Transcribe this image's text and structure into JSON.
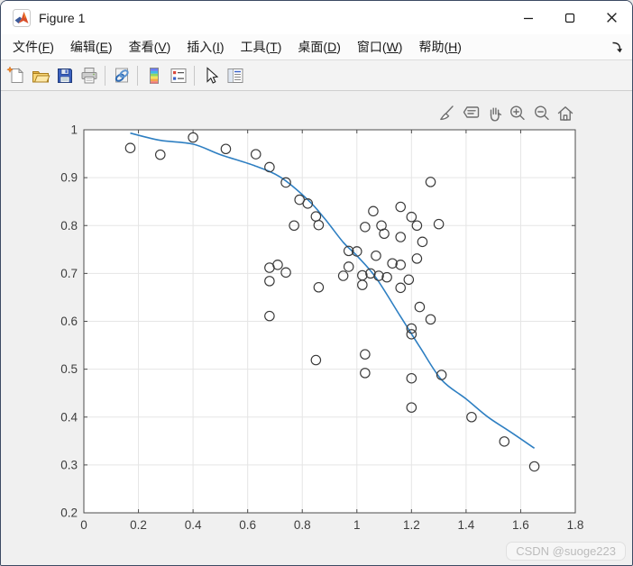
{
  "window": {
    "title": "Figure 1",
    "control_icons": [
      "minimize-icon",
      "maximize-icon",
      "close-icon"
    ]
  },
  "menu_bar": {
    "items": [
      {
        "key": "file",
        "text": "文件",
        "mnemonic": "F"
      },
      {
        "key": "edit",
        "text": "编辑",
        "mnemonic": "E"
      },
      {
        "key": "view",
        "text": "查看",
        "mnemonic": "V"
      },
      {
        "key": "insert",
        "text": "插入",
        "mnemonic": "I"
      },
      {
        "key": "tools",
        "text": "工具",
        "mnemonic": "T"
      },
      {
        "key": "desktop",
        "text": "桌面",
        "mnemonic": "D"
      },
      {
        "key": "window",
        "text": "窗口",
        "mnemonic": "W"
      },
      {
        "key": "help",
        "text": "帮助",
        "mnemonic": "H"
      }
    ],
    "overflow_icon": "dock-figure-arrow-icon"
  },
  "toolbar": {
    "button_icons": [
      "new-figure-icon",
      "open-file-icon",
      "save-figure-icon",
      "print-figure-icon",
      "link-plot-icon",
      "insert-colorbar-icon",
      "insert-legend-icon",
      "edit-plot-arrow-icon",
      "property-inspector-icon"
    ]
  },
  "axes_toolbar": {
    "button_icons": [
      "brush-icon",
      "datatips-icon",
      "pan-hand-icon",
      "zoom-in-icon",
      "zoom-out-icon",
      "restore-view-home-icon"
    ]
  },
  "watermark": "CSDN @suoge223",
  "colors": {
    "curve_blue": "#2e7fc2",
    "marker_edge": "#383838",
    "grid": "#e5e5e5",
    "axes_edge": "#4d4d4d",
    "window_bg": "#f0f0f0",
    "plot_bg": "#ffffff"
  },
  "chart_data": {
    "type": "scatter",
    "title": "",
    "xlabel": "",
    "ylabel": "",
    "xlim": [
      0,
      1.8
    ],
    "ylim": [
      0.2,
      1.0
    ],
    "xticks": [
      0,
      0.2,
      0.4,
      0.6,
      0.8,
      1,
      1.2,
      1.4,
      1.6,
      1.8
    ],
    "xtick_labels": [
      "0",
      "0.2",
      "0.4",
      "0.6",
      "0.8",
      "1",
      "1.2",
      "1.4",
      "1.6",
      "1.8"
    ],
    "yticks": [
      0.2,
      0.3,
      0.4,
      0.5,
      0.6,
      0.7,
      0.8,
      0.9,
      1
    ],
    "ytick_labels": [
      "0.2",
      "0.3",
      "0.4",
      "0.5",
      "0.6",
      "0.7",
      "0.8",
      "0.9",
      "1"
    ],
    "grid": true,
    "legend": null,
    "series": [
      {
        "name": "scatter-points",
        "type": "scatter",
        "marker": "open-circle",
        "color": "#383838",
        "points": [
          [
            0.17,
            0.962
          ],
          [
            0.28,
            0.948
          ],
          [
            0.4,
            0.984
          ],
          [
            0.52,
            0.96
          ],
          [
            0.63,
            0.949
          ],
          [
            0.68,
            0.922
          ],
          [
            0.74,
            0.89
          ],
          [
            0.79,
            0.854
          ],
          [
            0.82,
            0.846
          ],
          [
            0.77,
            0.8
          ],
          [
            0.85,
            0.819
          ],
          [
            0.86,
            0.801
          ],
          [
            0.68,
            0.712
          ],
          [
            0.71,
            0.718
          ],
          [
            0.74,
            0.702
          ],
          [
            0.68,
            0.684
          ],
          [
            0.86,
            0.671
          ],
          [
            0.68,
            0.611
          ],
          [
            1.27,
            0.891
          ],
          [
            1.16,
            0.839
          ],
          [
            1.06,
            0.83
          ],
          [
            1.2,
            0.818
          ],
          [
            1.22,
            0.8
          ],
          [
            1.3,
            0.803
          ],
          [
            1.03,
            0.797
          ],
          [
            1.09,
            0.8
          ],
          [
            1.1,
            0.783
          ],
          [
            1.16,
            0.776
          ],
          [
            1.24,
            0.766
          ],
          [
            0.97,
            0.747
          ],
          [
            1.0,
            0.746
          ],
          [
            1.07,
            0.737
          ],
          [
            1.13,
            0.721
          ],
          [
            1.16,
            0.718
          ],
          [
            1.22,
            0.731
          ],
          [
            0.97,
            0.714
          ],
          [
            0.95,
            0.695
          ],
          [
            1.02,
            0.696
          ],
          [
            1.05,
            0.7
          ],
          [
            1.08,
            0.695
          ],
          [
            1.11,
            0.692
          ],
          [
            1.02,
            0.676
          ],
          [
            1.19,
            0.687
          ],
          [
            1.16,
            0.67
          ],
          [
            1.2,
            0.585
          ],
          [
            1.2,
            0.573
          ],
          [
            1.27,
            0.604
          ],
          [
            1.23,
            0.63
          ],
          [
            0.85,
            0.519
          ],
          [
            1.03,
            0.531
          ],
          [
            1.03,
            0.492
          ],
          [
            1.2,
            0.481
          ],
          [
            1.31,
            0.488
          ],
          [
            1.2,
            0.42
          ],
          [
            1.42,
            0.4
          ],
          [
            1.54,
            0.349
          ],
          [
            1.65,
            0.297
          ]
        ]
      },
      {
        "name": "fitted-curve",
        "type": "line",
        "color": "#2e7fc2",
        "points": [
          [
            0.17,
            0.993
          ],
          [
            0.28,
            0.978
          ],
          [
            0.4,
            0.97
          ],
          [
            0.5,
            0.948
          ],
          [
            0.62,
            0.926
          ],
          [
            0.72,
            0.901
          ],
          [
            0.82,
            0.854
          ],
          [
            0.88,
            0.816
          ],
          [
            0.95,
            0.765
          ],
          [
            1.0,
            0.737
          ],
          [
            1.07,
            0.691
          ],
          [
            1.16,
            0.61
          ],
          [
            1.23,
            0.547
          ],
          [
            1.31,
            0.478
          ],
          [
            1.4,
            0.438
          ],
          [
            1.48,
            0.4
          ],
          [
            1.56,
            0.37
          ],
          [
            1.65,
            0.335
          ]
        ]
      }
    ]
  }
}
